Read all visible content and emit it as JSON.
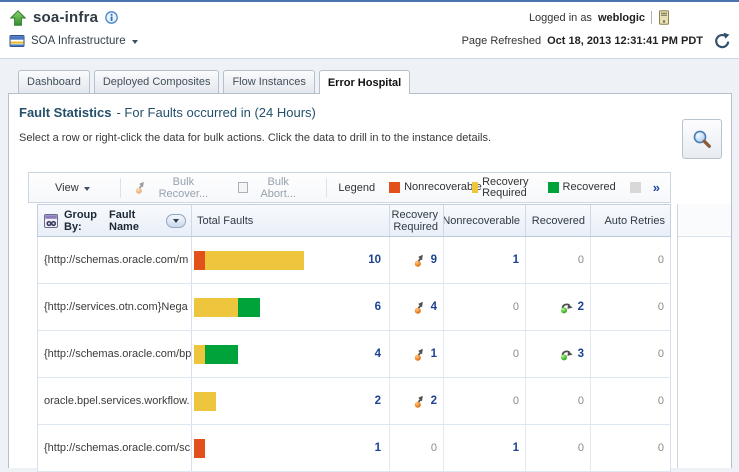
{
  "header": {
    "title": "soa-infra",
    "context_label": "SOA Infrastructure",
    "logged_in_prefix": "Logged in as",
    "logged_in_user": "weblogic",
    "refresh_prefix": "Page Refreshed",
    "refresh_time": "Oct 18, 2013 12:31:41 PM PDT"
  },
  "tabs": [
    {
      "label": "Dashboard",
      "active": false
    },
    {
      "label": "Deployed Composites",
      "active": false
    },
    {
      "label": "Flow Instances",
      "active": false
    },
    {
      "label": "Error Hospital",
      "active": true
    }
  ],
  "panel": {
    "title": "Fault Statistics",
    "title_suffix": "- For Faults occurred in (24 Hours)",
    "instruction": "Select a row or right-click the data for bulk actions. Click the data to drill in to the instance details."
  },
  "toolbar": {
    "view_label": "View",
    "bulk_recover_label": "Bulk Recover...",
    "bulk_abort_label": "Bulk Abort...",
    "legend_label": "Legend",
    "overflow_chevron": "»",
    "legend_items": [
      {
        "label": "Nonrecoverable",
        "color": "#e2511c"
      },
      {
        "label": "Recovery Required",
        "color": "#eec63e"
      },
      {
        "label": "Recovered",
        "color": "#00a33a"
      },
      {
        "label": "",
        "color": "#d8d8d8"
      }
    ]
  },
  "table": {
    "group_by_label": "Group By:",
    "group_by_value": "Fault Name",
    "columns": [
      "Total Faults",
      "Recovery Required",
      "Nonrecoverable",
      "Recovered",
      "Auto Retries"
    ],
    "rows": [
      {
        "fault_name": "{http://schemas.oracle.com/m",
        "total_faults": 10,
        "bar_segments": [
          {
            "type": "nonrecoverable",
            "count": 1
          },
          {
            "type": "recovery_required",
            "count": 9
          }
        ],
        "recovery_required": 9,
        "nonrecoverable": 1,
        "recovered": 0,
        "auto_retries": 0
      },
      {
        "fault_name": "{http://services.otn.com}Nega",
        "total_faults": 6,
        "bar_segments": [
          {
            "type": "recovery_required",
            "count": 4
          },
          {
            "type": "recovered",
            "count": 2
          }
        ],
        "recovery_required": 4,
        "nonrecoverable": 0,
        "recovered": 2,
        "auto_retries": 0
      },
      {
        "fault_name": "{http://schemas.oracle.com/bp",
        "total_faults": 4,
        "bar_segments": [
          {
            "type": "recovery_required",
            "count": 1
          },
          {
            "type": "recovered",
            "count": 3
          }
        ],
        "recovery_required": 1,
        "nonrecoverable": 0,
        "recovered": 3,
        "auto_retries": 0
      },
      {
        "fault_name": "oracle.bpel.services.workflow.",
        "total_faults": 2,
        "bar_segments": [
          {
            "type": "recovery_required",
            "count": 2
          }
        ],
        "recovery_required": 2,
        "nonrecoverable": 0,
        "recovered": 0,
        "auto_retries": 0
      },
      {
        "fault_name": "{http://schemas.oracle.com/sc",
        "total_faults": 1,
        "bar_segments": [
          {
            "type": "nonrecoverable",
            "count": 1
          }
        ],
        "recovery_required": 0,
        "nonrecoverable": 1,
        "recovered": 0,
        "auto_retries": 0
      }
    ]
  },
  "colors": {
    "nonrecoverable": "#e2511c",
    "recovery_required": "#eec63e",
    "recovered": "#00a33a",
    "value_blue": "#1c4291",
    "value_zero": "#8b8b8b"
  },
  "icons": {
    "home": "home-up-arrow-icon",
    "info": "info-icon",
    "target": "soa-infrastructure-icon",
    "host": "host-icon",
    "refresh": "refresh-icon",
    "search": "magnifier-icon",
    "bulk_recover": "recover-up-arrow-icon",
    "bulk_abort": "abort-square-icon",
    "group_by": "query-group-icon",
    "recovery_cell": "recovery-up-arrow-icon",
    "recovered_cell": "recovered-right-arrow-icon"
  }
}
